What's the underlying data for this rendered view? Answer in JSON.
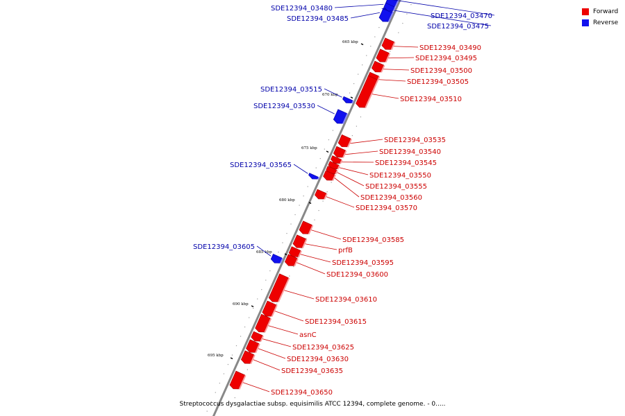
{
  "caption": "Streptococcus dysgalactiae subsp. equisimilis ATCC 12394, complete genome. - 0.....",
  "legend": [
    {
      "label": "Forward",
      "color": "#ee0000"
    },
    {
      "label": "Reverse",
      "color": "#1111ee"
    }
  ],
  "colors": {
    "forward": "#ee0000",
    "reverse": "#1111ee",
    "forward_label": "#cc0000",
    "reverse_label": "#0000aa",
    "backbone": "#888888"
  },
  "ticks": [
    {
      "label": "665 kbp"
    },
    {
      "label": "670 kbp"
    },
    {
      "label": "675 kbp"
    },
    {
      "label": "680 kbp"
    },
    {
      "label": "685 kbp"
    },
    {
      "label": "690 kbp"
    },
    {
      "label": "695 kbp"
    }
  ],
  "genes": [
    {
      "label": "SDE12394_03470",
      "strand": "reverse"
    },
    {
      "label": "SDE12394_03475",
      "strand": "reverse"
    },
    {
      "label": "SDE12394_03480",
      "strand": "reverse"
    },
    {
      "label": "SDE12394_03485",
      "strand": "reverse"
    },
    {
      "label": "SDE12394_03490",
      "strand": "forward"
    },
    {
      "label": "SDE12394_03495",
      "strand": "forward"
    },
    {
      "label": "SDE12394_03500",
      "strand": "forward"
    },
    {
      "label": "SDE12394_03505",
      "strand": "forward"
    },
    {
      "label": "SDE12394_03510",
      "strand": "forward"
    },
    {
      "label": "SDE12394_03515",
      "strand": "reverse"
    },
    {
      "label": "SDE12394_03530",
      "strand": "reverse"
    },
    {
      "label": "SDE12394_03535",
      "strand": "forward"
    },
    {
      "label": "SDE12394_03540",
      "strand": "forward"
    },
    {
      "label": "SDE12394_03545",
      "strand": "forward"
    },
    {
      "label": "SDE12394_03550",
      "strand": "forward"
    },
    {
      "label": "SDE12394_03555",
      "strand": "forward"
    },
    {
      "label": "SDE12394_03560",
      "strand": "forward"
    },
    {
      "label": "SDE12394_03565",
      "strand": "reverse"
    },
    {
      "label": "SDE12394_03570",
      "strand": "forward"
    },
    {
      "label": "SDE12394_03585",
      "strand": "forward"
    },
    {
      "label": "prfB",
      "strand": "forward"
    },
    {
      "label": "SDE12394_03595",
      "strand": "forward"
    },
    {
      "label": "SDE12394_03600",
      "strand": "forward"
    },
    {
      "label": "SDE12394_03605",
      "strand": "reverse"
    },
    {
      "label": "SDE12394_03610",
      "strand": "forward"
    },
    {
      "label": "SDE12394_03615",
      "strand": "forward"
    },
    {
      "label": "asnC",
      "strand": "forward"
    },
    {
      "label": "SDE12394_03625",
      "strand": "forward"
    },
    {
      "label": "SDE12394_03630",
      "strand": "forward"
    },
    {
      "label": "SDE12394_03635",
      "strand": "forward"
    },
    {
      "label": "SDE12394_03650",
      "strand": "forward"
    }
  ]
}
